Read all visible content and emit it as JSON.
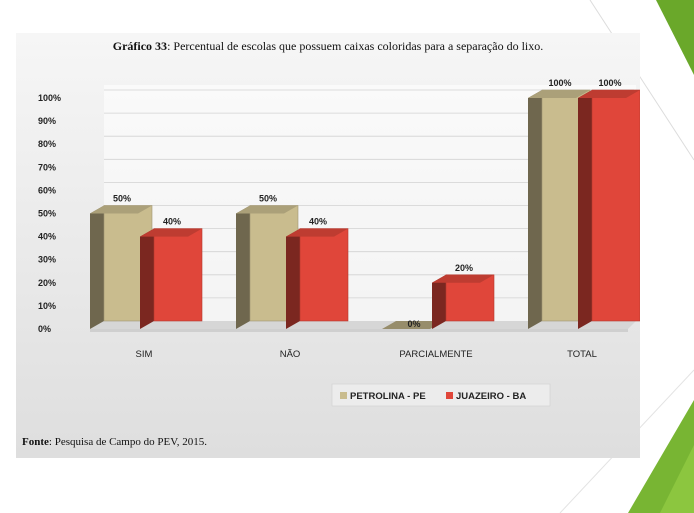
{
  "chart_data": {
    "type": "bar",
    "title_bold": "Gráfico 33",
    "title_rest": ": Percentual de escolas que possuem caixas coloridas para a separação do lixo.",
    "categories": [
      "SIM",
      "NÃO",
      "PARCIALMENTE",
      "TOTAL"
    ],
    "series": [
      {
        "name": "PETROLINA - PE",
        "values": [
          50,
          50,
          0,
          100
        ],
        "labels": [
          "50%",
          "50%",
          "0%",
          "100%"
        ]
      },
      {
        "name": "JUAZEIRO - BA",
        "values": [
          40,
          40,
          20,
          100
        ],
        "labels": [
          "40%",
          "40%",
          "20%",
          "100%"
        ]
      }
    ],
    "yticks": [
      "0%",
      "10%",
      "20%",
      "30%",
      "40%",
      "50%",
      "60%",
      "70%",
      "80%",
      "90%",
      "100%"
    ],
    "ylim": [
      0,
      100
    ],
    "grid": true,
    "legend_position": "bottom",
    "colors": {
      "series_0": "#c9bc8e",
      "series_1": "#e0463a",
      "slide_accent": "#7ab52b"
    },
    "source_bold": "Fonte",
    "source_rest": ": Pesquisa de Campo do PEV, 2015."
  }
}
